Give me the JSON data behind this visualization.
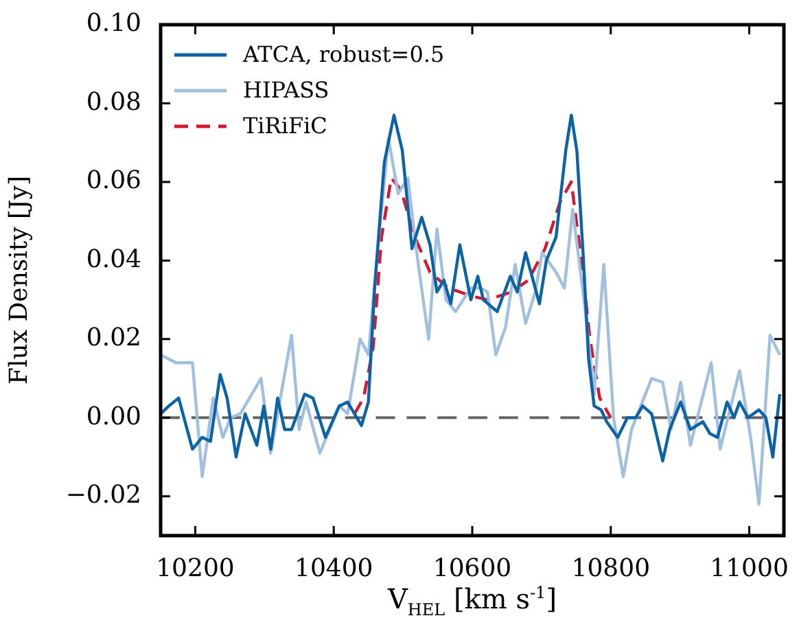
{
  "chart_data": {
    "type": "line",
    "xlabel": "V$_{HEL}$ [km s$^{-1}$]",
    "ylabel": "Flux Density [Jy]",
    "xlim": [
      10150,
      11050
    ],
    "xticks": [
      10200,
      10400,
      10600,
      10800,
      11000
    ],
    "ylim": [
      -0.03,
      0.1
    ],
    "yticks": [
      {
        "value": -0.02,
        "label": "−0.02"
      },
      {
        "value": 0,
        "label": "0.00"
      },
      {
        "value": 0.02,
        "label": "0.02"
      },
      {
        "value": 0.04,
        "label": "0.04"
      },
      {
        "value": 0.06,
        "label": "0.06"
      },
      {
        "value": 0.08,
        "label": "0.08"
      },
      {
        "value": 0.1,
        "label": "0.10"
      }
    ],
    "legend": "top left",
    "grid": false,
    "marker": "none",
    "ref_lines": [
      {
        "axis": "y",
        "value": 0,
        "color": "#666666",
        "line_style": "dashed"
      }
    ],
    "series": [
      {
        "name": "ATCA, robust=0.5",
        "color": "#0b62a4",
        "line_style": "solid",
        "x": [
          10150,
          10162,
          10176,
          10196,
          10210,
          10222,
          10236,
          10246,
          10259,
          10272,
          10289,
          10299,
          10309,
          10319,
          10329,
          10339,
          10358,
          10370,
          10388,
          10408,
          10420,
          10430,
          10440,
          10450,
          10459,
          10473,
          10487,
          10499,
          10513,
          10527,
          10539,
          10549,
          10559,
          10569,
          10582,
          10598,
          10608,
          10616,
          10636,
          10655,
          10665,
          10677,
          10697,
          10707,
          10721,
          10735,
          10743,
          10751,
          10760,
          10768,
          10776,
          10786,
          10794,
          10810,
          10824,
          10836,
          10846,
          10859,
          10875,
          10885,
          10901,
          10915,
          10933,
          10943,
          10954,
          10968,
          10978,
          10986,
          10998,
          11014,
          11024,
          11034,
          11044
        ],
        "values": [
          0.001,
          0.003,
          0.005,
          -0.008,
          -0.005,
          -0.006,
          0.011,
          0.005,
          -0.01,
          0.001,
          -0.007,
          0.003,
          -0.008,
          0.005,
          -0.003,
          -0.003,
          0.006,
          0.005,
          -0.005,
          0.003,
          0.004,
          0.001,
          -0.002,
          0.004,
          0.033,
          0.065,
          0.077,
          0.068,
          0.043,
          0.051,
          0.044,
          0.032,
          0.035,
          0.029,
          0.044,
          0.03,
          0.036,
          0.03,
          0.027,
          0.036,
          0.032,
          0.042,
          0.029,
          0.04,
          0.046,
          0.068,
          0.077,
          0.068,
          0.042,
          0.015,
          0.003,
          0.002,
          -0.001,
          -0.005,
          0.0,
          0.0,
          0.003,
          0.001,
          -0.011,
          -0.003,
          0.004,
          -0.003,
          -0.001,
          -0.004,
          -0.005,
          0.004,
          0.0,
          0.004,
          0.0,
          0.002,
          0.0,
          -0.01,
          0.006
        ]
      },
      {
        "name": "HIPASS",
        "color": "#a1bfdf",
        "line_style": "solid",
        "x": [
          10150,
          10172,
          10196,
          10210,
          10226,
          10240,
          10251,
          10265,
          10295,
          10309,
          10339,
          10350,
          10360,
          10380,
          10408,
          10420,
          10438,
          10450,
          10463,
          10479,
          10493,
          10507,
          10519,
          10537,
          10549,
          10562,
          10576,
          10598,
          10612,
          10622,
          10634,
          10648,
          10662,
          10677,
          10691,
          10701,
          10721,
          10733,
          10745,
          10762,
          10776,
          10790,
          10804,
          10818,
          10830,
          10859,
          10875,
          10887,
          10901,
          10915,
          10945,
          10958,
          10986,
          11002,
          11014,
          11030,
          11044
        ],
        "values": [
          0.016,
          0.014,
          0.014,
          -0.015,
          0.005,
          -0.005,
          0.0,
          0.001,
          0.01,
          -0.009,
          0.021,
          -0.003,
          0.004,
          -0.009,
          0.003,
          0.001,
          0.02,
          0.016,
          0.042,
          0.071,
          0.057,
          0.061,
          0.043,
          0.02,
          0.048,
          0.03,
          0.027,
          0.033,
          0.033,
          0.032,
          0.016,
          0.023,
          0.039,
          0.024,
          0.032,
          0.042,
          0.037,
          0.033,
          0.053,
          0.029,
          0.006,
          0.039,
          0.0,
          -0.015,
          -0.003,
          0.01,
          0.009,
          -0.003,
          0.009,
          -0.007,
          0.014,
          -0.008,
          0.012,
          -0.005,
          -0.022,
          0.021,
          0.016
        ]
      },
      {
        "name": "TiRiFiC",
        "color": "#d7172f",
        "line_style": "dashed",
        "x": [
          10430,
          10443,
          10457,
          10469,
          10483,
          10497,
          10517,
          10539,
          10566,
          10598,
          10622,
          10657,
          10681,
          10705,
          10727,
          10743,
          10757,
          10770,
          10784,
          10800
        ],
        "values": [
          0.001,
          0.005,
          0.018,
          0.046,
          0.061,
          0.058,
          0.046,
          0.037,
          0.033,
          0.031,
          0.03,
          0.032,
          0.035,
          0.043,
          0.055,
          0.06,
          0.041,
          0.02,
          0.005,
          0.0
        ]
      }
    ]
  }
}
